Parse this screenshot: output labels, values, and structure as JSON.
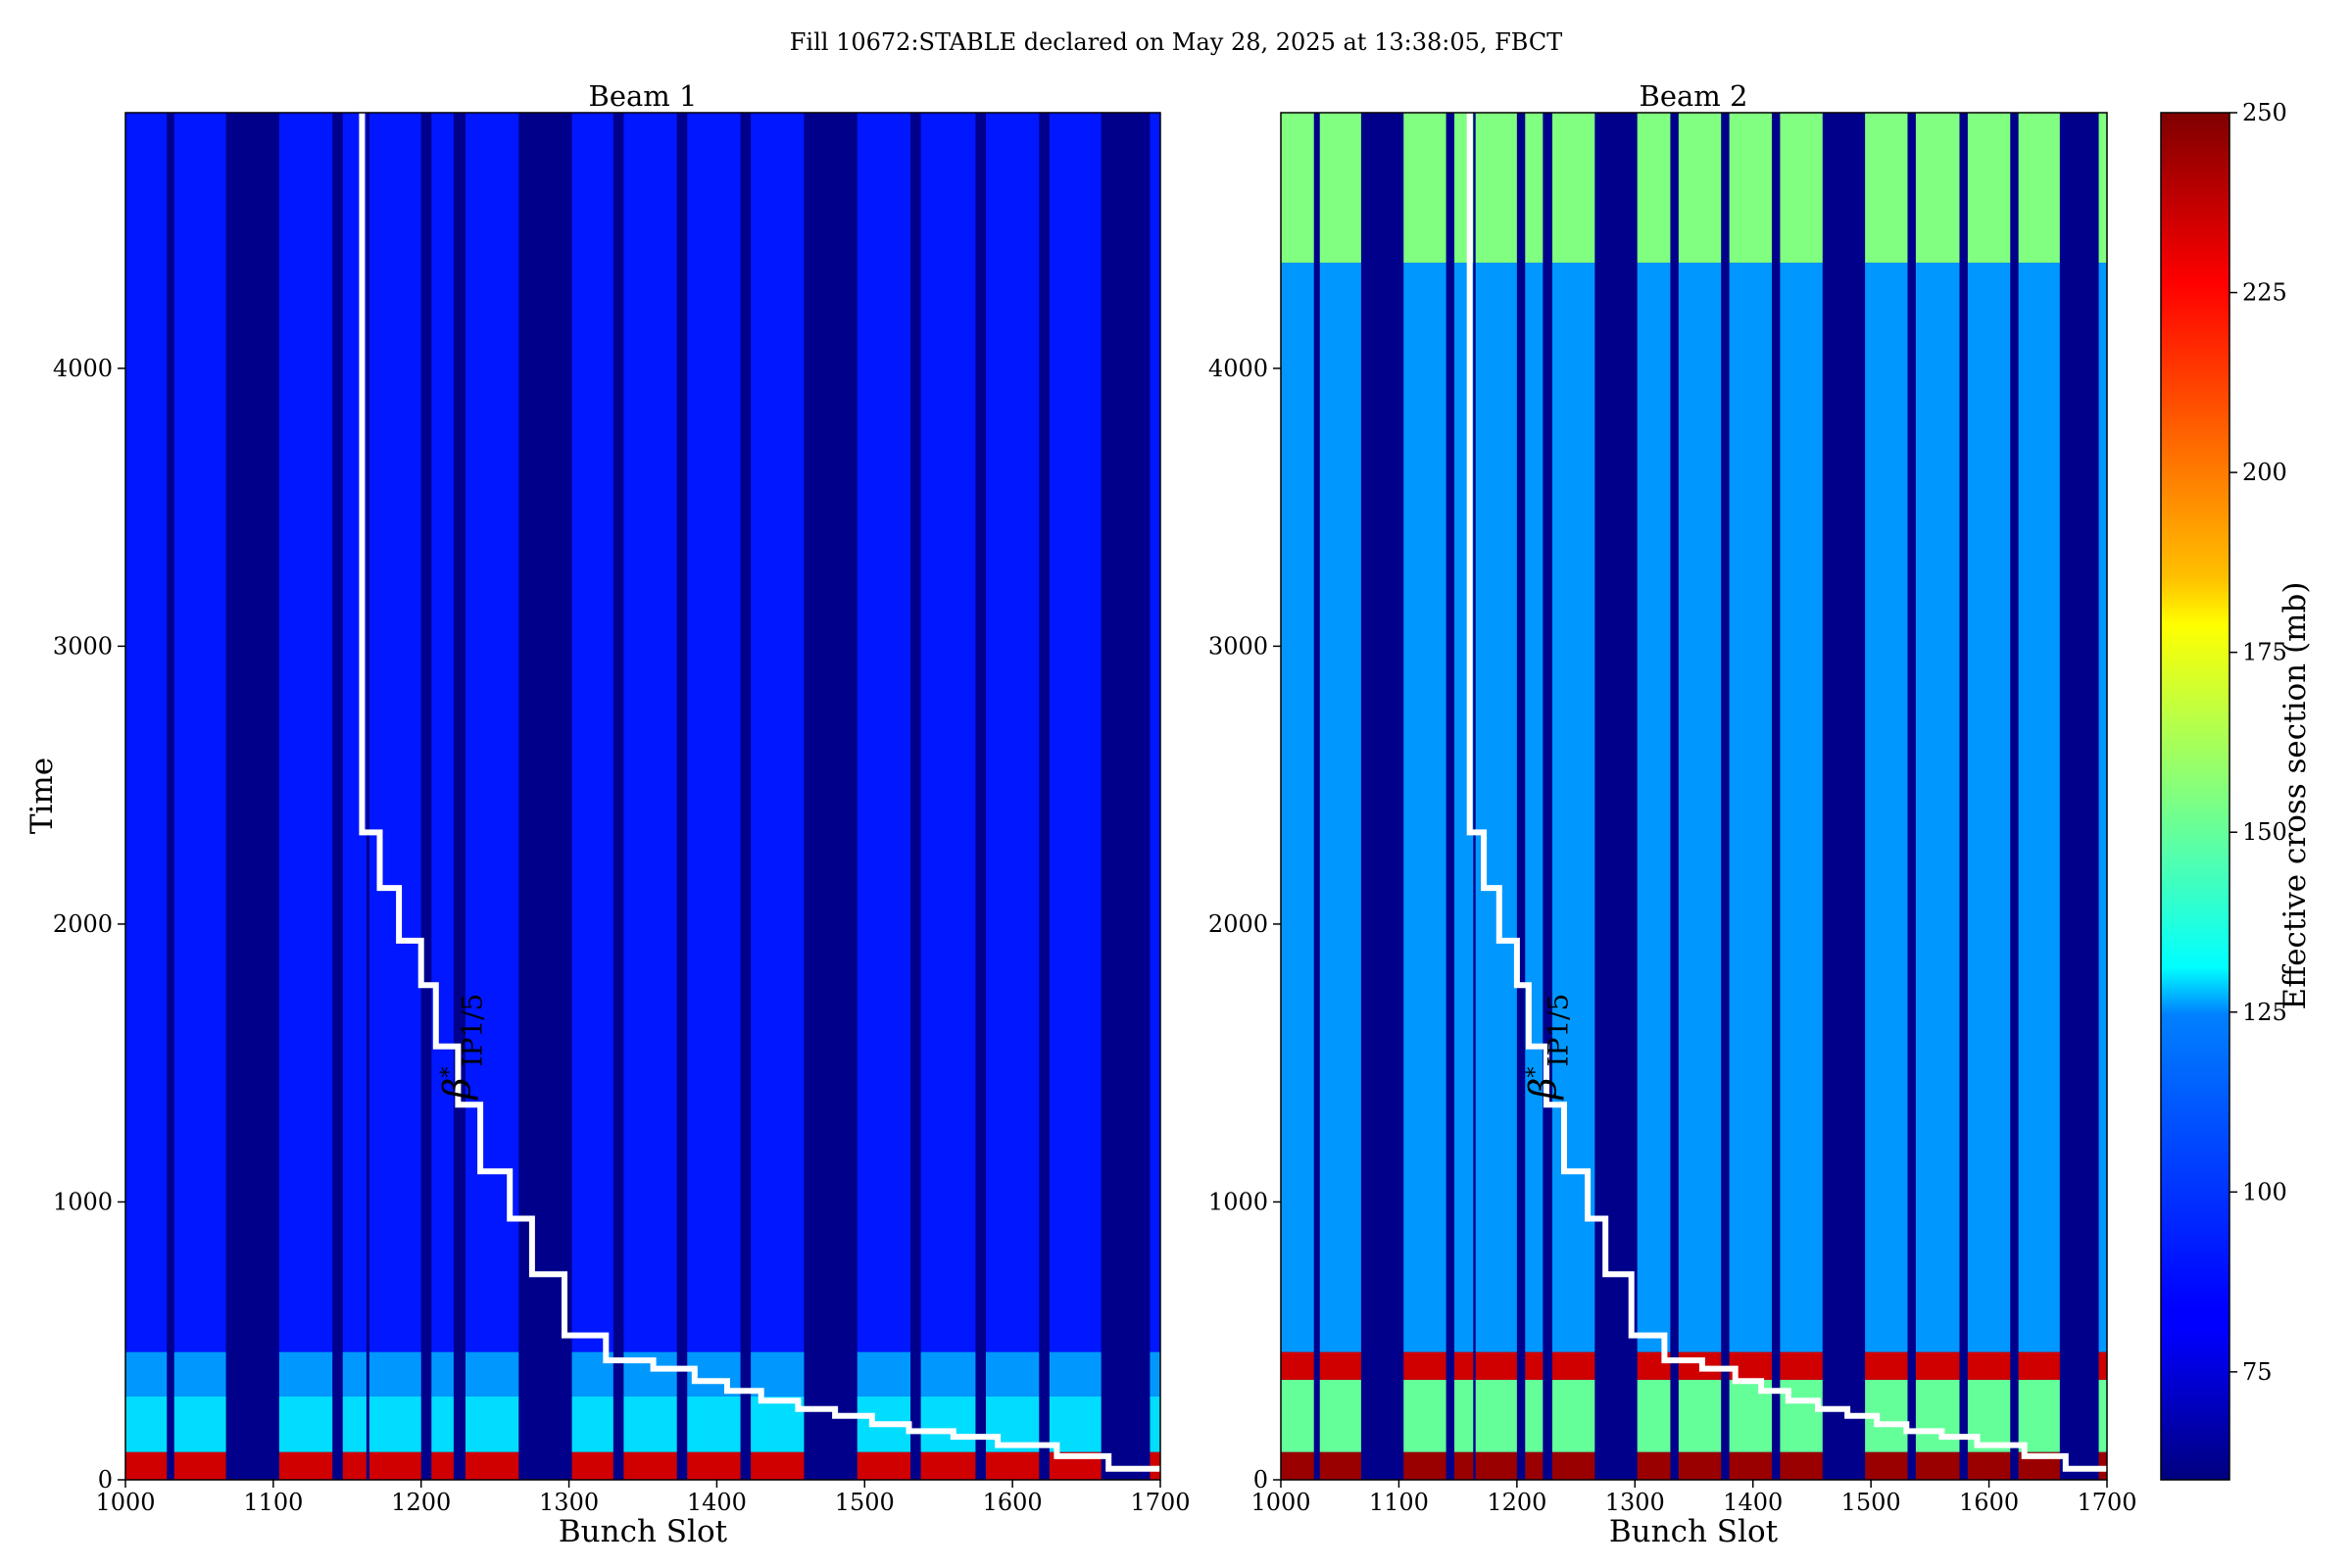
{
  "figure": {
    "suptitle": "Fill 10672:STABLE declared on May 28, 2025 at 13:38:05, FBCT"
  },
  "chart_data": [
    {
      "type": "heatmap",
      "title": "Beam 1",
      "xlabel": "Bunch Slot",
      "ylabel": "Time",
      "xlim": [
        1000,
        1700
      ],
      "ylim": [
        0,
        4920
      ],
      "x_ticks": [
        1000,
        1100,
        1200,
        1300,
        1400,
        1500,
        1600,
        1700
      ],
      "y_ticks": [
        0,
        1000,
        2000,
        3000,
        4000
      ],
      "filled_bunch_trains": [
        [
          1000,
          1028
        ],
        [
          1033,
          1068
        ],
        [
          1104,
          1140
        ],
        [
          1147,
          1163
        ],
        [
          1165,
          1200
        ],
        [
          1207,
          1222
        ],
        [
          1230,
          1266
        ],
        [
          1302,
          1330
        ],
        [
          1337,
          1373
        ],
        [
          1380,
          1416
        ],
        [
          1423,
          1459
        ],
        [
          1495,
          1531
        ],
        [
          1538,
          1575
        ],
        [
          1582,
          1618
        ],
        [
          1625,
          1660
        ],
        [
          1693,
          1700
        ]
      ],
      "background_level_mb": 90,
      "time_bands": [
        {
          "t": [
            0,
            100
          ],
          "level_mb": 235
        },
        {
          "t": [
            100,
            300
          ],
          "level_mb": 125
        },
        {
          "t": [
            300,
            460
          ],
          "level_mb": 112
        },
        {
          "t": [
            460,
            4920
          ],
          "level_mb": 88
        }
      ],
      "annotation": {
        "symbol": "β",
        "superscript": "*",
        "subscript": "IP1/5",
        "line": "beta-star step curve",
        "color": "#ffffff",
        "steps": [
          {
            "x": 1160,
            "y": 4920
          },
          {
            "x": 1160,
            "y": 2330
          },
          {
            "x": 1172,
            "y": 2330
          },
          {
            "x": 1172,
            "y": 2130
          },
          {
            "x": 1185,
            "y": 2130
          },
          {
            "x": 1185,
            "y": 1940
          },
          {
            "x": 1200,
            "y": 1940
          },
          {
            "x": 1200,
            "y": 1780
          },
          {
            "x": 1210,
            "y": 1780
          },
          {
            "x": 1210,
            "y": 1560
          },
          {
            "x": 1225,
            "y": 1560
          },
          {
            "x": 1225,
            "y": 1350
          },
          {
            "x": 1240,
            "y": 1350
          },
          {
            "x": 1240,
            "y": 1110
          },
          {
            "x": 1260,
            "y": 1110
          },
          {
            "x": 1260,
            "y": 940
          },
          {
            "x": 1275,
            "y": 940
          },
          {
            "x": 1275,
            "y": 740
          },
          {
            "x": 1297,
            "y": 740
          },
          {
            "x": 1297,
            "y": 520
          },
          {
            "x": 1325,
            "y": 520
          },
          {
            "x": 1325,
            "y": 430
          },
          {
            "x": 1357,
            "y": 430
          },
          {
            "x": 1357,
            "y": 400
          },
          {
            "x": 1385,
            "y": 400
          },
          {
            "x": 1385,
            "y": 355
          },
          {
            "x": 1407,
            "y": 355
          },
          {
            "x": 1407,
            "y": 320
          },
          {
            "x": 1430,
            "y": 320
          },
          {
            "x": 1430,
            "y": 285
          },
          {
            "x": 1455,
            "y": 285
          },
          {
            "x": 1455,
            "y": 255
          },
          {
            "x": 1480,
            "y": 255
          },
          {
            "x": 1480,
            "y": 230
          },
          {
            "x": 1505,
            "y": 230
          },
          {
            "x": 1505,
            "y": 200
          },
          {
            "x": 1530,
            "y": 200
          },
          {
            "x": 1530,
            "y": 175
          },
          {
            "x": 1560,
            "y": 175
          },
          {
            "x": 1560,
            "y": 155
          },
          {
            "x": 1590,
            "y": 155
          },
          {
            "x": 1590,
            "y": 125
          },
          {
            "x": 1630,
            "y": 125
          },
          {
            "x": 1630,
            "y": 85
          },
          {
            "x": 1665,
            "y": 85
          },
          {
            "x": 1665,
            "y": 40
          },
          {
            "x": 1700,
            "y": 40
          }
        ]
      }
    },
    {
      "type": "heatmap",
      "title": "Beam 2",
      "xlabel": "Bunch Slot",
      "ylabel": "",
      "xlim": [
        1000,
        1700
      ],
      "ylim": [
        0,
        4920
      ],
      "x_ticks": [
        1000,
        1100,
        1200,
        1300,
        1400,
        1500,
        1600,
        1700
      ],
      "y_ticks": [
        0,
        1000,
        2000,
        3000,
        4000
      ],
      "filled_bunch_trains": [
        [
          1000,
          1028
        ],
        [
          1033,
          1068
        ],
        [
          1104,
          1140
        ],
        [
          1147,
          1163
        ],
        [
          1165,
          1200
        ],
        [
          1207,
          1222
        ],
        [
          1230,
          1266
        ],
        [
          1302,
          1330
        ],
        [
          1337,
          1373
        ],
        [
          1380,
          1416
        ],
        [
          1423,
          1459
        ],
        [
          1495,
          1531
        ],
        [
          1538,
          1575
        ],
        [
          1582,
          1618
        ],
        [
          1625,
          1660
        ],
        [
          1693,
          1700
        ]
      ],
      "background_level_mb": 100,
      "time_bands": [
        {
          "t": [
            0,
            100
          ],
          "level_mb": 245
        },
        {
          "t": [
            100,
            360
          ],
          "level_mb": 150
        },
        {
          "t": [
            360,
            460
          ],
          "level_mb": 235
        },
        {
          "t": [
            460,
            4380
          ],
          "level_mb": 112
        },
        {
          "t": [
            4380,
            4920
          ],
          "level_mb": 155
        }
      ],
      "annotation": {
        "symbol": "β",
        "superscript": "*",
        "subscript": "IP1/5",
        "line": "beta-star step curve",
        "color": "#ffffff",
        "steps": [
          {
            "x": 1160,
            "y": 4920
          },
          {
            "x": 1160,
            "y": 2330
          },
          {
            "x": 1172,
            "y": 2330
          },
          {
            "x": 1172,
            "y": 2130
          },
          {
            "x": 1185,
            "y": 2130
          },
          {
            "x": 1185,
            "y": 1940
          },
          {
            "x": 1200,
            "y": 1940
          },
          {
            "x": 1200,
            "y": 1780
          },
          {
            "x": 1210,
            "y": 1780
          },
          {
            "x": 1210,
            "y": 1560
          },
          {
            "x": 1225,
            "y": 1560
          },
          {
            "x": 1225,
            "y": 1350
          },
          {
            "x": 1240,
            "y": 1350
          },
          {
            "x": 1240,
            "y": 1110
          },
          {
            "x": 1260,
            "y": 1110
          },
          {
            "x": 1260,
            "y": 940
          },
          {
            "x": 1275,
            "y": 940
          },
          {
            "x": 1275,
            "y": 740
          },
          {
            "x": 1297,
            "y": 740
          },
          {
            "x": 1297,
            "y": 520
          },
          {
            "x": 1325,
            "y": 520
          },
          {
            "x": 1325,
            "y": 430
          },
          {
            "x": 1357,
            "y": 430
          },
          {
            "x": 1357,
            "y": 400
          },
          {
            "x": 1385,
            "y": 400
          },
          {
            "x": 1385,
            "y": 355
          },
          {
            "x": 1407,
            "y": 355
          },
          {
            "x": 1407,
            "y": 320
          },
          {
            "x": 1430,
            "y": 320
          },
          {
            "x": 1430,
            "y": 285
          },
          {
            "x": 1455,
            "y": 285
          },
          {
            "x": 1455,
            "y": 255
          },
          {
            "x": 1480,
            "y": 255
          },
          {
            "x": 1480,
            "y": 230
          },
          {
            "x": 1505,
            "y": 230
          },
          {
            "x": 1505,
            "y": 200
          },
          {
            "x": 1530,
            "y": 200
          },
          {
            "x": 1530,
            "y": 175
          },
          {
            "x": 1560,
            "y": 175
          },
          {
            "x": 1560,
            "y": 155
          },
          {
            "x": 1590,
            "y": 155
          },
          {
            "x": 1590,
            "y": 125
          },
          {
            "x": 1630,
            "y": 125
          },
          {
            "x": 1630,
            "y": 85
          },
          {
            "x": 1665,
            "y": 85
          },
          {
            "x": 1665,
            "y": 40
          },
          {
            "x": 1700,
            "y": 40
          }
        ]
      }
    }
  ],
  "colorbar": {
    "label": "Effective cross section (mb)",
    "colormap": "jet",
    "vmin": 60,
    "vmax": 250,
    "ticks": [
      75,
      100,
      125,
      150,
      175,
      200,
      225,
      250
    ],
    "empty_slot_color": "#00008b"
  }
}
